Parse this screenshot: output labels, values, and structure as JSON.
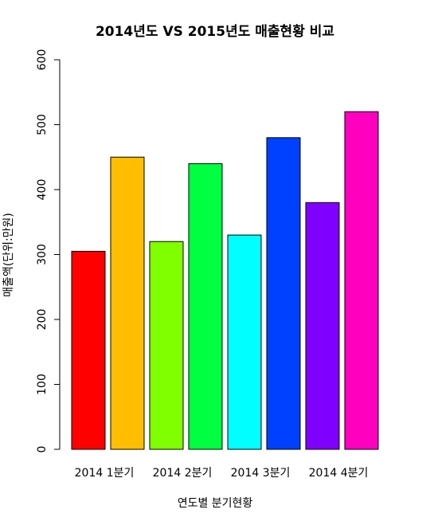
{
  "chart_data": {
    "type": "bar",
    "title": "2014년도 VS 2015년도 매출현황 비교",
    "xlabel": "연도별 분기현황",
    "ylabel": "매출액(단위:만원)",
    "ylim": [
      0,
      600
    ],
    "y_ticks": [
      "0",
      "100",
      "200",
      "300",
      "400",
      "500",
      "600"
    ],
    "grid": false,
    "categories": [
      "2014 1분기",
      "",
      "2014 2분기",
      "",
      "2014 3분기",
      "",
      "2014 4분기",
      ""
    ],
    "values": [
      305,
      450,
      320,
      440,
      330,
      480,
      380,
      520
    ],
    "colors": [
      "#ff0000",
      "#ffbf00",
      "#80ff00",
      "#00ff40",
      "#00ffff",
      "#0040ff",
      "#8000ff",
      "#ff00bf"
    ]
  }
}
